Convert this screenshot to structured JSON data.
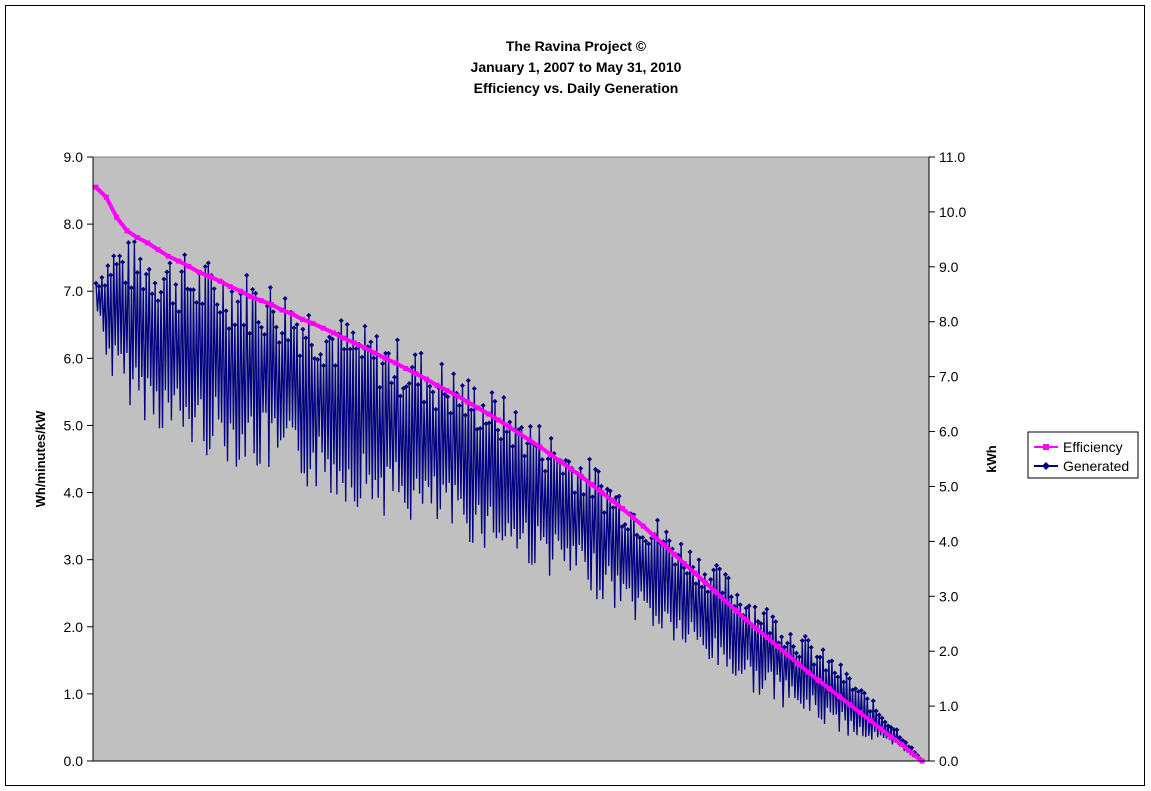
{
  "chart_data": {
    "type": "line",
    "title_lines": [
      "The Ravina Project ©",
      "January 1, 2007 to May 31, 2010",
      "Efficiency vs. Daily Generation"
    ],
    "ylabel": "Wh/minutes/kW",
    "y2label": "kWh",
    "ylim": [
      0,
      9
    ],
    "y2lim": [
      0,
      11
    ],
    "yticks": [
      "0.0",
      "1.0",
      "2.0",
      "3.0",
      "4.0",
      "5.0",
      "6.0",
      "7.0",
      "8.0",
      "9.0"
    ],
    "y2ticks": [
      "0.0",
      "1.0",
      "2.0",
      "3.0",
      "4.0",
      "5.0",
      "6.0",
      "7.0",
      "8.0",
      "9.0",
      "10.0",
      "11.0"
    ],
    "grid": false,
    "legend_position": "right",
    "series": [
      {
        "name": "Efficiency",
        "axis": "left",
        "color": "#ff00ff",
        "marker": "square",
        "values": [
          8.55,
          8.4,
          8.1,
          7.9,
          7.8,
          7.72,
          7.62,
          7.52,
          7.45,
          7.37,
          7.28,
          7.22,
          7.15,
          7.07,
          7.0,
          6.92,
          6.86,
          6.8,
          6.72,
          6.66,
          6.58,
          6.52,
          6.45,
          6.38,
          6.3,
          6.23,
          6.16,
          6.08,
          6.0,
          5.93,
          5.85,
          5.77,
          5.69,
          5.6,
          5.52,
          5.44,
          5.35,
          5.26,
          5.17,
          5.08,
          4.98,
          4.88,
          4.78,
          4.68,
          4.57,
          4.46,
          4.35,
          4.24,
          4.12,
          4.0,
          3.88,
          3.76,
          3.63,
          3.5,
          3.36,
          3.22,
          3.08,
          2.94,
          2.8,
          2.66,
          2.52,
          2.38,
          2.24,
          2.1,
          1.97,
          1.84,
          1.71,
          1.58,
          1.45,
          1.32,
          1.2,
          1.08,
          0.96,
          0.84,
          0.72,
          0.6,
          0.48,
          0.36,
          0.25,
          0.12,
          0.0
        ]
      },
      {
        "name": "Generated",
        "axis": "right",
        "color": "#000080",
        "marker": "diamond",
        "envelope": [
          {
            "idx": 0,
            "hi": 8.8,
            "lo": 8.2
          },
          {
            "idx": 0.02,
            "hi": 9.5,
            "lo": 6.8
          },
          {
            "idx": 0.05,
            "hi": 9.5,
            "lo": 6.3
          },
          {
            "idx": 0.1,
            "hi": 9.3,
            "lo": 5.7
          },
          {
            "idx": 0.2,
            "hi": 8.9,
            "lo": 5.2
          },
          {
            "idx": 0.3,
            "hi": 8.1,
            "lo": 4.7
          },
          {
            "idx": 0.4,
            "hi": 7.5,
            "lo": 4.2
          },
          {
            "idx": 0.5,
            "hi": 6.6,
            "lo": 3.7
          },
          {
            "idx": 0.6,
            "hi": 5.5,
            "lo": 3.0
          },
          {
            "idx": 0.7,
            "hi": 4.2,
            "lo": 2.1
          },
          {
            "idx": 0.8,
            "hi": 3.0,
            "lo": 1.2
          },
          {
            "idx": 0.9,
            "hi": 1.8,
            "lo": 0.5
          },
          {
            "idx": 0.97,
            "hi": 0.6,
            "lo": 0.2
          },
          {
            "idx": 1.0,
            "hi": 0.0,
            "lo": 0.0
          }
        ]
      }
    ]
  }
}
